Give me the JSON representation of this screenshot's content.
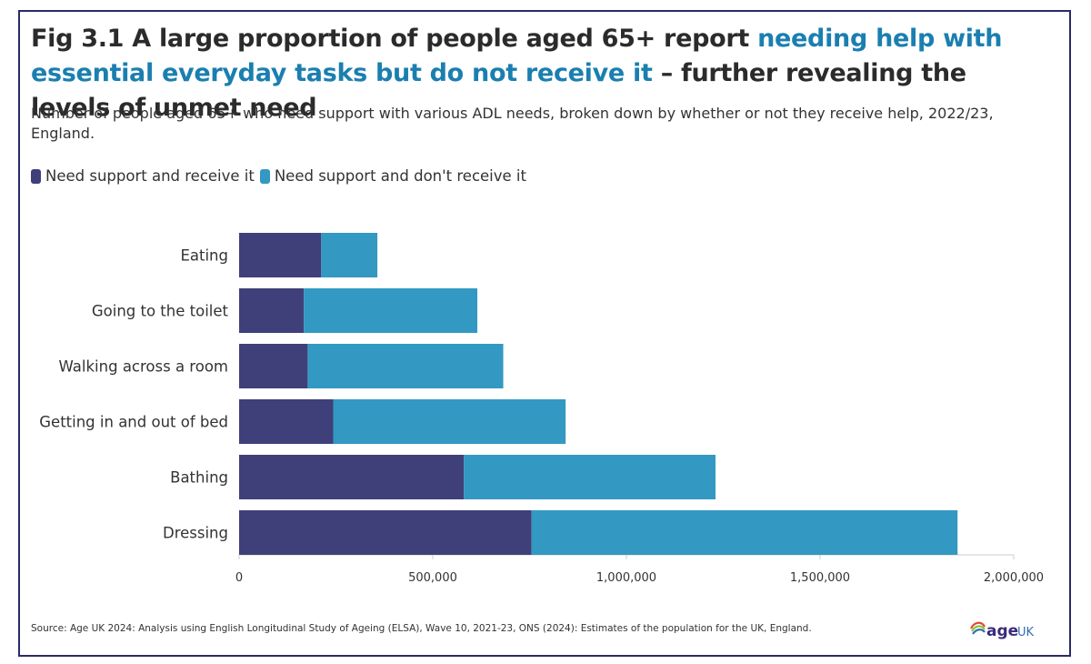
{
  "title": {
    "part1": "Fig 3.1 A large proportion of people aged 65+ report ",
    "highlight": "needing help with essential everyday tasks but do not receive it",
    "part2": " – further revealing the levels of unmet need"
  },
  "subtitle": "Number of people aged 65+ who need support with various ADL needs, broken down by whether or not they receive help, 2022/23, England.",
  "source": "Source: Age UK 2024: Analysis using English Longitudinal Study of Ageing (ELSA), Wave 10, 2021-23, ONS (2024): Estimates of the population for the UK, England.",
  "logo": {
    "text_a": "age",
    "text_b": "UK"
  },
  "colors": {
    "receive": "#3f4079",
    "not_receive": "#3398c2",
    "highlight": "#1a7fb0"
  },
  "chart_data": {
    "type": "bar",
    "orientation": "horizontal",
    "stacked": true,
    "categories": [
      "Eating",
      "Going to the toilet",
      "Walking across a room",
      "Getting in and out of bed",
      "Bathing",
      "Dressing"
    ],
    "series": [
      {
        "name": "Need support and receive it",
        "values": [
          212000,
          167000,
          177000,
          243000,
          580000,
          755000
        ]
      },
      {
        "name": "Need support and don't receive it",
        "values": [
          145000,
          448000,
          505000,
          600000,
          650000,
          1100000
        ]
      }
    ],
    "xlim": [
      0,
      2000000
    ],
    "xticks": [
      0,
      500000,
      1000000,
      1500000,
      2000000
    ],
    "xtick_labels": [
      "0",
      "500,000",
      "1,000,000",
      "1,500,000",
      "2,000,000"
    ],
    "legend_position": "top-left"
  }
}
